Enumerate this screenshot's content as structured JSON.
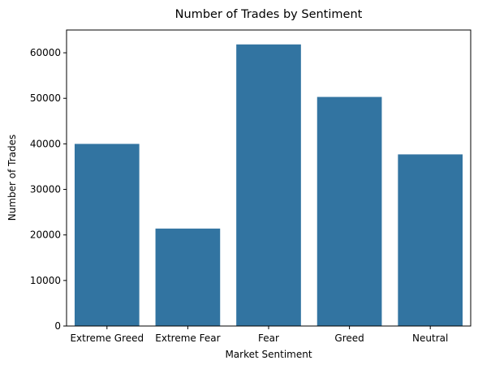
{
  "chart_data": {
    "type": "bar",
    "title": "Number of Trades by Sentiment",
    "xlabel": "Market Sentiment",
    "ylabel": "Number of Trades",
    "categories": [
      "Extreme Greed",
      "Extreme Fear",
      "Fear",
      "Greed",
      "Neutral"
    ],
    "values": [
      39992,
      21400,
      61837,
      50303,
      37686
    ],
    "ylim": [
      0,
      65000
    ],
    "yticks": [
      0,
      10000,
      20000,
      30000,
      40000,
      50000,
      60000
    ],
    "grid": false,
    "bar_color": "#3274a1"
  }
}
